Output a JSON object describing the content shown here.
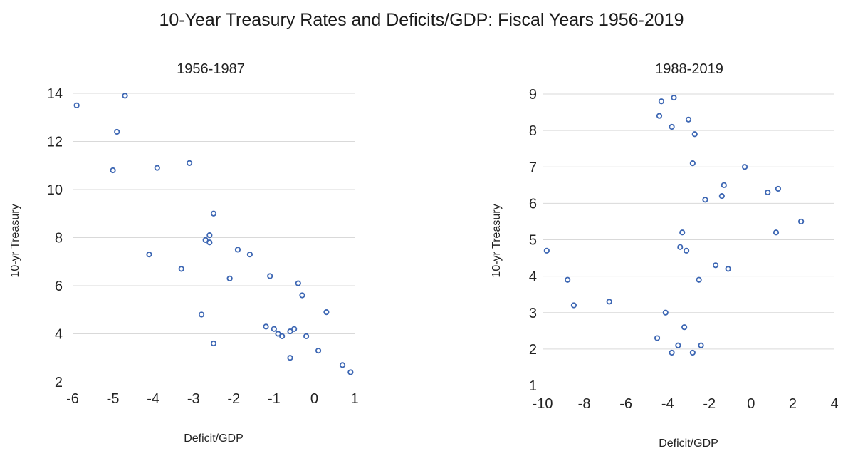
{
  "title": "10-Year Treasury Rates and Deficits/GDP: Fiscal Years 1956-2019",
  "colors": {
    "marker": "#3c66b3",
    "grid": "#d9d9d9",
    "text": "#222222"
  },
  "chart_data": [
    {
      "type": "scatter",
      "title": "1956-1987",
      "xlabel": "Deficit/GDP",
      "ylabel": "10-yr Treasury",
      "xlim": [
        -6,
        1
      ],
      "ylim": [
        2,
        14
      ],
      "x_ticks": [
        -6,
        -5,
        -4,
        -3,
        -2,
        -1,
        0,
        1
      ],
      "y_ticks": [
        2,
        4,
        6,
        8,
        10,
        12,
        14
      ],
      "grid": "horizontal",
      "points": [
        {
          "x": -5.9,
          "y": 13.5
        },
        {
          "x": -4.7,
          "y": 13.9
        },
        {
          "x": -4.9,
          "y": 12.4
        },
        {
          "x": -5.0,
          "y": 10.8
        },
        {
          "x": -3.9,
          "y": 10.9
        },
        {
          "x": -3.1,
          "y": 11.1
        },
        {
          "x": -2.5,
          "y": 9.0
        },
        {
          "x": -2.6,
          "y": 8.1
        },
        {
          "x": -2.7,
          "y": 7.9
        },
        {
          "x": -2.6,
          "y": 7.8
        },
        {
          "x": -1.9,
          "y": 7.5
        },
        {
          "x": -1.6,
          "y": 7.3
        },
        {
          "x": -4.1,
          "y": 7.3
        },
        {
          "x": -3.3,
          "y": 6.7
        },
        {
          "x": -2.1,
          "y": 6.3
        },
        {
          "x": -1.1,
          "y": 6.4
        },
        {
          "x": -0.4,
          "y": 6.1
        },
        {
          "x": -0.3,
          "y": 5.6
        },
        {
          "x": 0.3,
          "y": 4.9
        },
        {
          "x": -2.8,
          "y": 4.8
        },
        {
          "x": -1.2,
          "y": 4.3
        },
        {
          "x": -1.0,
          "y": 4.2
        },
        {
          "x": -0.9,
          "y": 4.0
        },
        {
          "x": -0.8,
          "y": 3.9
        },
        {
          "x": -0.6,
          "y": 4.1
        },
        {
          "x": -0.5,
          "y": 4.2
        },
        {
          "x": -0.2,
          "y": 3.9
        },
        {
          "x": -2.5,
          "y": 3.6
        },
        {
          "x": 0.1,
          "y": 3.3
        },
        {
          "x": -0.6,
          "y": 3.0
        },
        {
          "x": 0.7,
          "y": 2.7
        },
        {
          "x": 0.9,
          "y": 2.4
        }
      ]
    },
    {
      "type": "scatter",
      "title": "1988-2019",
      "xlabel": "Deficit/GDP",
      "ylabel": "10-yr Treasury",
      "xlim": [
        -10,
        4
      ],
      "ylim": [
        1,
        9
      ],
      "x_ticks": [
        -10,
        -8,
        -6,
        -4,
        -2,
        0,
        2,
        4
      ],
      "y_ticks": [
        1,
        2,
        3,
        4,
        5,
        6,
        7,
        8,
        9
      ],
      "grid": "horizontal",
      "points": [
        {
          "x": -3.7,
          "y": 8.9
        },
        {
          "x": -4.3,
          "y": 8.8
        },
        {
          "x": -4.4,
          "y": 8.4
        },
        {
          "x": -3.0,
          "y": 8.3
        },
        {
          "x": -3.8,
          "y": 8.1
        },
        {
          "x": -2.7,
          "y": 7.9
        },
        {
          "x": -2.8,
          "y": 7.1
        },
        {
          "x": -0.3,
          "y": 7.0
        },
        {
          "x": -1.3,
          "y": 6.5
        },
        {
          "x": 1.3,
          "y": 6.4
        },
        {
          "x": 0.8,
          "y": 6.3
        },
        {
          "x": -2.2,
          "y": 6.1
        },
        {
          "x": -1.4,
          "y": 6.2
        },
        {
          "x": 2.4,
          "y": 5.5
        },
        {
          "x": 1.2,
          "y": 5.2
        },
        {
          "x": -3.3,
          "y": 5.2
        },
        {
          "x": -3.4,
          "y": 4.8
        },
        {
          "x": -3.1,
          "y": 4.7
        },
        {
          "x": -9.8,
          "y": 4.7
        },
        {
          "x": -1.7,
          "y": 4.3
        },
        {
          "x": -1.1,
          "y": 4.2
        },
        {
          "x": -8.8,
          "y": 3.9
        },
        {
          "x": -2.5,
          "y": 3.9
        },
        {
          "x": -6.8,
          "y": 3.3
        },
        {
          "x": -8.5,
          "y": 3.2
        },
        {
          "x": -4.1,
          "y": 3.0
        },
        {
          "x": -3.2,
          "y": 2.6
        },
        {
          "x": -4.5,
          "y": 2.3
        },
        {
          "x": -3.5,
          "y": 2.1
        },
        {
          "x": -2.4,
          "y": 2.1
        },
        {
          "x": -3.8,
          "y": 1.9
        },
        {
          "x": -2.8,
          "y": 1.9
        }
      ]
    }
  ]
}
